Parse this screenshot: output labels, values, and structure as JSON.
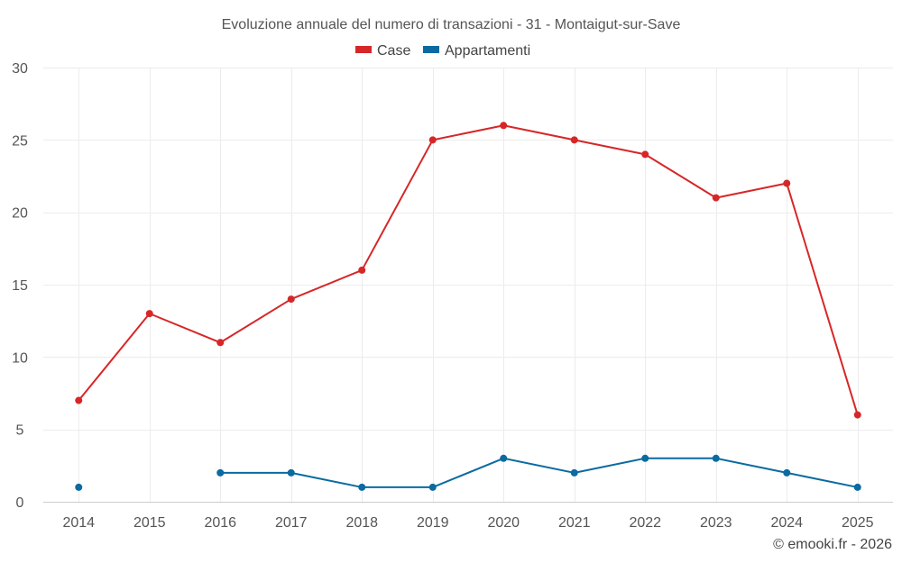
{
  "chart_data": {
    "type": "line",
    "title": "Evoluzione annuale del numero di transazioni - 31 - Montaigut-sur-Save",
    "xlabel": "",
    "ylabel": "",
    "categories": [
      "2014",
      "2015",
      "2016",
      "2017",
      "2018",
      "2019",
      "2020",
      "2021",
      "2022",
      "2023",
      "2024",
      "2025"
    ],
    "ylim": [
      0,
      30
    ],
    "yticks": [
      0,
      5,
      10,
      15,
      20,
      25,
      30
    ],
    "grid": true,
    "legend_position": "top-center",
    "series": [
      {
        "name": "Case",
        "color": "#d62728",
        "values": [
          7,
          13,
          11,
          14,
          16,
          25,
          26,
          25,
          24,
          21,
          22,
          6
        ]
      },
      {
        "name": "Appartamenti",
        "color": "#0a6aa1",
        "values": [
          1,
          null,
          2,
          2,
          1,
          1,
          3,
          2,
          3,
          3,
          2,
          1
        ]
      }
    ]
  },
  "credit": "© emooki.fr - 2026"
}
